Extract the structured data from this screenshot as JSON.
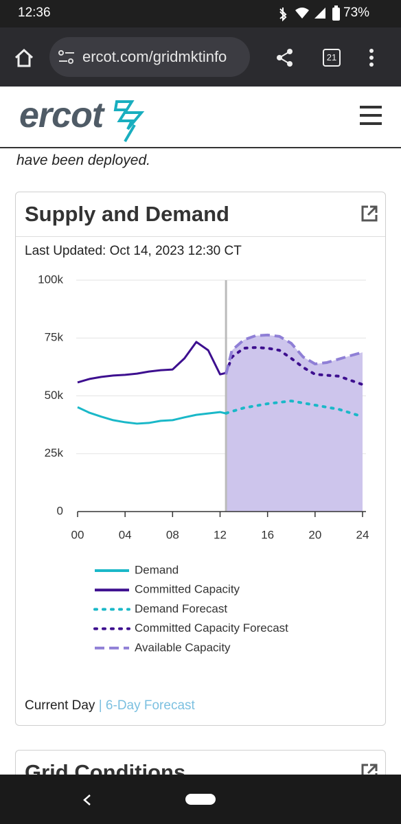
{
  "status_bar": {
    "time": "12:36",
    "battery": "73%"
  },
  "browser": {
    "url": "ercot.com/gridmktinfo",
    "tabs": "21"
  },
  "site": {
    "logo": "ercot"
  },
  "page": {
    "intro": "have been deployed."
  },
  "card": {
    "title": "Supply and Demand",
    "last_updated": "Last Updated: Oct 14, 2023 12:30 CT",
    "tabs": [
      "Current Day",
      "6-Day Forecast"
    ],
    "tabs_separator": "|"
  },
  "next_card": {
    "title": "Grid Conditions"
  },
  "chart_data": {
    "type": "line",
    "xlim": [
      0,
      24
    ],
    "xticks": [
      {
        "value": 0,
        "label": "00"
      },
      {
        "value": 4,
        "label": "04"
      },
      {
        "value": 8,
        "label": "08"
      },
      12,
      16,
      20,
      24
    ],
    "ylim": [
      0,
      100000
    ],
    "yticks": [
      0,
      {
        "value": 25000,
        "label": "25k"
      },
      {
        "value": 50000,
        "label": "50k"
      },
      {
        "value": 75000,
        "label": "75k"
      },
      {
        "value": 100000,
        "label": "100k"
      }
    ],
    "grid": true,
    "now": 12.5,
    "series": [
      {
        "name": "Demand",
        "color": "#1ab8c8",
        "dash": "solid",
        "x": [
          0,
          1,
          2,
          3,
          4,
          5,
          6,
          7,
          8,
          9,
          10,
          11,
          12,
          12.5
        ],
        "values": [
          45100,
          42700,
          41000,
          39500,
          38600,
          38000,
          38300,
          39200,
          39500,
          40700,
          41800,
          42400,
          43000,
          42400
        ]
      },
      {
        "name": "Committed Capacity",
        "color": "#3d0f8f",
        "dash": "solid",
        "x": [
          0,
          1,
          2,
          3,
          4,
          5,
          6,
          7,
          8,
          9,
          10,
          11,
          12,
          12.5
        ],
        "values": [
          55800,
          57300,
          58200,
          58800,
          59100,
          59600,
          60500,
          61100,
          61400,
          66200,
          73300,
          69700,
          59300,
          59900
        ]
      },
      {
        "name": "Demand Forecast",
        "color": "#1ab8c8",
        "dash": "dotted",
        "fill": "gradient",
        "x": [
          12.5,
          14,
          16,
          18,
          20,
          22,
          24
        ],
        "values": [
          42500,
          44800,
          46600,
          47800,
          46000,
          44200,
          41000
        ]
      },
      {
        "name": "Committed Capacity Forecast",
        "color": "#3d0f8f",
        "dash": "dotted",
        "x": [
          12.5,
          13,
          14,
          15,
          16,
          17,
          18,
          19,
          20,
          22,
          24
        ],
        "values": [
          59900,
          66800,
          70600,
          70900,
          70600,
          69700,
          66200,
          62300,
          59300,
          58500,
          54900
        ]
      },
      {
        "name": "Available Capacity",
        "color": "#8f7fd6",
        "dash": "dashed",
        "fill": "solid",
        "x": [
          12.5,
          13,
          14,
          15,
          16,
          17,
          18,
          19,
          20,
          21,
          22,
          23,
          24
        ],
        "values": [
          59300,
          69700,
          74200,
          76000,
          76300,
          75700,
          72700,
          66800,
          63800,
          64400,
          65900,
          67400,
          68800
        ]
      }
    ]
  }
}
